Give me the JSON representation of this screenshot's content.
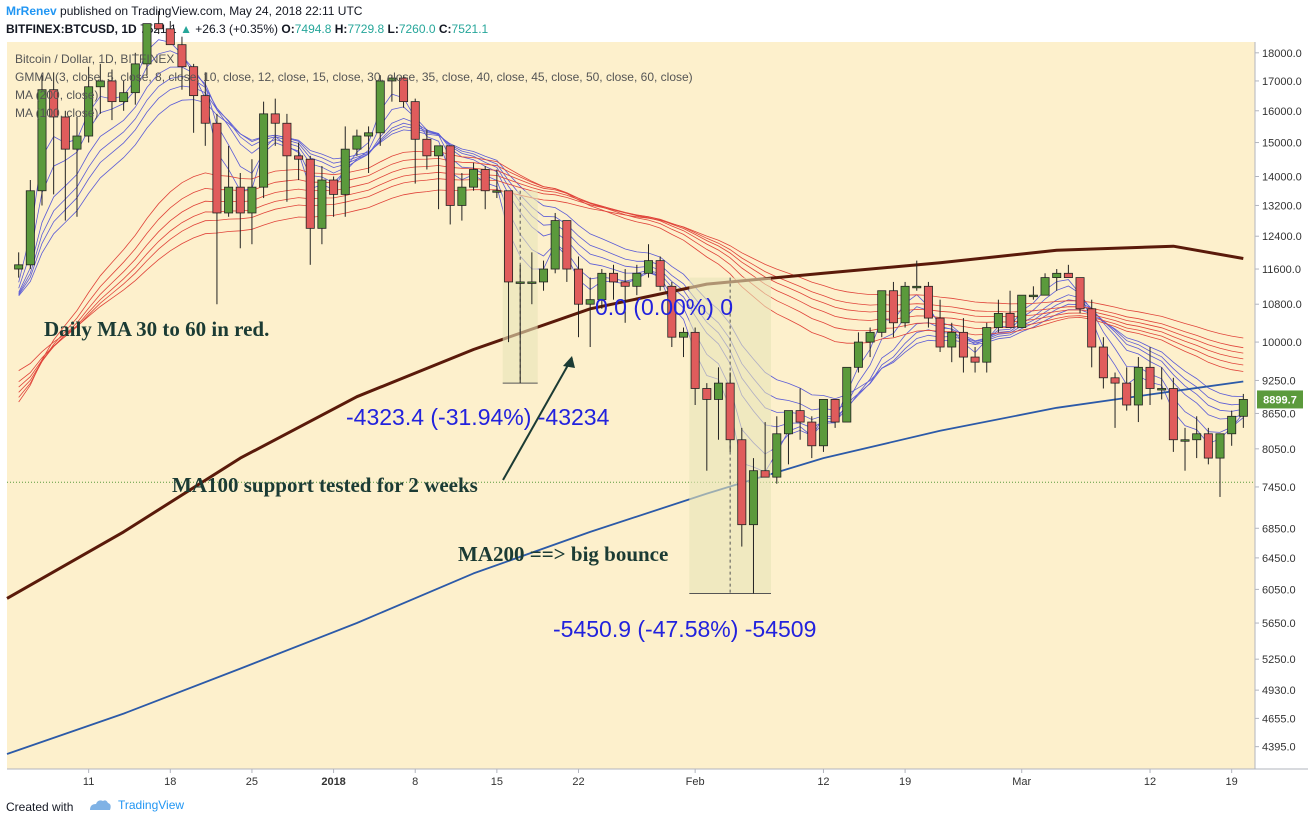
{
  "header": {
    "author": "MrRenev",
    "published_text": "published on TradingView.com, May 24, 2018 22:11 UTC",
    "symbol": "BITFINEX:BTCUSD, 1D",
    "last": "7521.1",
    "change_arrow": "▲",
    "change": "+26.3 (+0.35%)",
    "o_label": "O:",
    "o_value": "7494.8",
    "h_label": "H:",
    "h_value": "7729.8",
    "l_label": "L:",
    "l_value": "7260.0",
    "c_label": "C:",
    "c_value": "7521.1"
  },
  "legend": {
    "title": "Bitcoin / Dollar, 1D, BITFINEX",
    "gmma": "GMMA (3, close, 5, close, 8, close, 10, close, 12, close, 15, close, 30, close, 35, close, 40, close, 45, close, 50, close, 60, close)",
    "ma200": "MA (200, close)",
    "ma100": "MA (100, close)"
  },
  "annotations": {
    "daily_ma": "Daily MA 30 to 60 in red.",
    "ma100_support": "MA100 support tested for 2 weeks",
    "ma200_bounce": "MA200 ==> big bounce",
    "measure1": "-4323.4 (-31.94%) -43234",
    "measure2": "-5450.9 (-47.58%) -54509",
    "measure0": "0.0 (0.00%) 0"
  },
  "price_badge": "8899.7",
  "footer": {
    "created_with": "Created with",
    "brand": "TradingView"
  },
  "colors": {
    "background": "#fdf0cc",
    "bull": "#5b9a3c",
    "bear": "#e05c5c",
    "gmma_short": "#5b5bd6",
    "gmma_long": "#e0443a",
    "ma100": "#5a1a0a",
    "ma200": "#2c5aa8",
    "annotation_blue": "#2222dd",
    "annotation_green": "#1b3b34"
  },
  "chart_data": {
    "type": "candlestick",
    "title": "Bitcoin / Dollar, 1D, BITFINEX",
    "xlabel": "",
    "ylabel": "",
    "ylim": [
      4200,
      18400
    ],
    "y_scale": "log",
    "y_ticks": [
      "18000.0",
      "17000.0",
      "16000.0",
      "15000.0",
      "14000.0",
      "13200.0",
      "12400.0",
      "11600.0",
      "10800.0",
      "10000.0",
      "9250.0",
      "8650.0",
      "8050.0",
      "7450.0",
      "6850.0",
      "6450.0",
      "6050.0",
      "5650.0",
      "5250.0",
      "4930.0",
      "4655.0",
      "4395.0"
    ],
    "x_ticks": [
      "11",
      "18",
      "25",
      "2018",
      "8",
      "15",
      "22",
      "Feb",
      "12",
      "19",
      "Mar",
      "12",
      "19"
    ],
    "x_range": [
      "2017-12-04",
      "2018-03-21"
    ],
    "current_price_line": 7521.1,
    "candles": [
      {
        "date": "2017-12-05",
        "o": 11600,
        "h": 12000,
        "l": 11400,
        "c": 11700
      },
      {
        "date": "2017-12-06",
        "o": 11700,
        "h": 13900,
        "l": 11600,
        "c": 13600
      },
      {
        "date": "2017-12-07",
        "o": 13600,
        "h": 17200,
        "l": 13200,
        "c": 16700
      },
      {
        "date": "2017-12-08",
        "o": 16700,
        "h": 17300,
        "l": 13500,
        "c": 15800
      },
      {
        "date": "2017-12-09",
        "o": 15800,
        "h": 16000,
        "l": 12800,
        "c": 14800
      },
      {
        "date": "2017-12-10",
        "o": 14800,
        "h": 15800,
        "l": 12900,
        "c": 15200
      },
      {
        "date": "2017-12-11",
        "o": 15200,
        "h": 17500,
        "l": 15000,
        "c": 16800
      },
      {
        "date": "2017-12-12",
        "o": 16800,
        "h": 17600,
        "l": 15900,
        "c": 17000
      },
      {
        "date": "2017-12-13",
        "o": 17000,
        "h": 17400,
        "l": 15700,
        "c": 16300
      },
      {
        "date": "2017-12-14",
        "o": 16300,
        "h": 17000,
        "l": 16000,
        "c": 16600
      },
      {
        "date": "2017-12-15",
        "o": 16600,
        "h": 18000,
        "l": 16200,
        "c": 17600
      },
      {
        "date": "2017-12-16",
        "o": 17600,
        "h": 19000,
        "l": 17200,
        "c": 19100
      },
      {
        "date": "2017-12-17",
        "o": 19100,
        "h": 19600,
        "l": 18700,
        "c": 18900
      },
      {
        "date": "2017-12-18",
        "o": 18900,
        "h": 19200,
        "l": 18300,
        "c": 18300
      },
      {
        "date": "2017-12-19",
        "o": 18300,
        "h": 18600,
        "l": 16700,
        "c": 17500
      },
      {
        "date": "2017-12-20",
        "o": 17500,
        "h": 17600,
        "l": 15300,
        "c": 16500
      },
      {
        "date": "2017-12-21",
        "o": 16500,
        "h": 17300,
        "l": 14900,
        "c": 15600
      },
      {
        "date": "2017-12-22",
        "o": 15600,
        "h": 15900,
        "l": 10800,
        "c": 13000
      },
      {
        "date": "2017-12-23",
        "o": 13000,
        "h": 14900,
        "l": 12900,
        "c": 13700
      },
      {
        "date": "2017-12-24",
        "o": 13700,
        "h": 14100,
        "l": 12100,
        "c": 13000
      },
      {
        "date": "2017-12-25",
        "o": 13000,
        "h": 14500,
        "l": 12200,
        "c": 13700
      },
      {
        "date": "2017-12-26",
        "o": 13700,
        "h": 16300,
        "l": 13400,
        "c": 15900
      },
      {
        "date": "2017-12-27",
        "o": 15900,
        "h": 16400,
        "l": 14900,
        "c": 15600
      },
      {
        "date": "2017-12-28",
        "o": 15600,
        "h": 15900,
        "l": 13300,
        "c": 14600
      },
      {
        "date": "2017-12-29",
        "o": 14600,
        "h": 15000,
        "l": 13900,
        "c": 14500
      },
      {
        "date": "2017-12-30",
        "o": 14500,
        "h": 14600,
        "l": 11700,
        "c": 12600
      },
      {
        "date": "2017-12-31",
        "o": 12600,
        "h": 14300,
        "l": 12200,
        "c": 13900
      },
      {
        "date": "2018-01-01",
        "o": 13900,
        "h": 14000,
        "l": 12900,
        "c": 13500
      },
      {
        "date": "2018-01-02",
        "o": 13500,
        "h": 15500,
        "l": 12900,
        "c": 14800
      },
      {
        "date": "2018-01-03",
        "o": 14800,
        "h": 15400,
        "l": 14600,
        "c": 15200
      },
      {
        "date": "2018-01-04",
        "o": 15200,
        "h": 15500,
        "l": 14100,
        "c": 15300
      },
      {
        "date": "2018-01-05",
        "o": 15300,
        "h": 17200,
        "l": 14900,
        "c": 17000
      },
      {
        "date": "2018-01-06",
        "o": 17000,
        "h": 17200,
        "l": 16300,
        "c": 17100
      },
      {
        "date": "2018-01-07",
        "o": 17100,
        "h": 17200,
        "l": 16100,
        "c": 16300
      },
      {
        "date": "2018-01-08",
        "o": 16300,
        "h": 16400,
        "l": 13800,
        "c": 15100
      },
      {
        "date": "2018-01-09",
        "o": 15100,
        "h": 15400,
        "l": 14200,
        "c": 14600
      },
      {
        "date": "2018-01-10",
        "o": 14600,
        "h": 14900,
        "l": 13100,
        "c": 14900
      },
      {
        "date": "2018-01-11",
        "o": 14900,
        "h": 14900,
        "l": 12700,
        "c": 13200
      },
      {
        "date": "2018-01-12",
        "o": 13200,
        "h": 14100,
        "l": 12800,
        "c": 13700
      },
      {
        "date": "2018-01-13",
        "o": 13700,
        "h": 14400,
        "l": 13600,
        "c": 14200
      },
      {
        "date": "2018-01-14",
        "o": 14200,
        "h": 14300,
        "l": 13100,
        "c": 13600
      },
      {
        "date": "2018-01-15",
        "o": 13600,
        "h": 14200,
        "l": 13400,
        "c": 13600
      },
      {
        "date": "2018-01-16",
        "o": 13600,
        "h": 13600,
        "l": 10000,
        "c": 11300
      },
      {
        "date": "2018-01-17",
        "o": 11300,
        "h": 11700,
        "l": 9200,
        "c": 11300
      },
      {
        "date": "2018-01-18",
        "o": 11300,
        "h": 12000,
        "l": 10800,
        "c": 11300
      },
      {
        "date": "2018-01-19",
        "o": 11300,
        "h": 11800,
        "l": 11100,
        "c": 11600
      },
      {
        "date": "2018-01-20",
        "o": 11600,
        "h": 13000,
        "l": 11500,
        "c": 12800
      },
      {
        "date": "2018-01-21",
        "o": 12800,
        "h": 12800,
        "l": 11300,
        "c": 11600
      },
      {
        "date": "2018-01-22",
        "o": 11600,
        "h": 11900,
        "l": 10100,
        "c": 10800
      },
      {
        "date": "2018-01-23",
        "o": 10800,
        "h": 11400,
        "l": 9900,
        "c": 10900
      },
      {
        "date": "2018-01-24",
        "o": 10900,
        "h": 11600,
        "l": 10700,
        "c": 11500
      },
      {
        "date": "2018-01-25",
        "o": 11500,
        "h": 11700,
        "l": 10900,
        "c": 11300
      },
      {
        "date": "2018-01-26",
        "o": 11300,
        "h": 11600,
        "l": 10400,
        "c": 11200
      },
      {
        "date": "2018-01-27",
        "o": 11200,
        "h": 11700,
        "l": 11000,
        "c": 11500
      },
      {
        "date": "2018-01-28",
        "o": 11500,
        "h": 12200,
        "l": 11400,
        "c": 11800
      },
      {
        "date": "2018-01-29",
        "o": 11800,
        "h": 11900,
        "l": 11100,
        "c": 11200
      },
      {
        "date": "2018-01-30",
        "o": 11200,
        "h": 11300,
        "l": 9900,
        "c": 10100
      },
      {
        "date": "2018-01-31",
        "o": 10100,
        "h": 10300,
        "l": 9700,
        "c": 10200
      },
      {
        "date": "2018-02-01",
        "o": 10200,
        "h": 10300,
        "l": 8800,
        "c": 9100
      },
      {
        "date": "2018-02-02",
        "o": 9100,
        "h": 9200,
        "l": 7700,
        "c": 8900
      },
      {
        "date": "2018-02-03",
        "o": 8900,
        "h": 9500,
        "l": 8200,
        "c": 9200
      },
      {
        "date": "2018-02-04",
        "o": 9200,
        "h": 9400,
        "l": 8000,
        "c": 8200
      },
      {
        "date": "2018-02-05",
        "o": 8200,
        "h": 8400,
        "l": 6600,
        "c": 6900
      },
      {
        "date": "2018-02-06",
        "o": 6900,
        "h": 7900,
        "l": 6000,
        "c": 7700
      },
      {
        "date": "2018-02-07",
        "o": 7700,
        "h": 8500,
        "l": 7600,
        "c": 7600
      },
      {
        "date": "2018-02-08",
        "o": 7600,
        "h": 8600,
        "l": 7500,
        "c": 8300
      },
      {
        "date": "2018-02-09",
        "o": 8300,
        "h": 8700,
        "l": 7800,
        "c": 8700
      },
      {
        "date": "2018-02-10",
        "o": 8700,
        "h": 9100,
        "l": 8200,
        "c": 8500
      },
      {
        "date": "2018-02-11",
        "o": 8500,
        "h": 8600,
        "l": 7900,
        "c": 8100
      },
      {
        "date": "2018-02-12",
        "o": 8100,
        "h": 8900,
        "l": 8000,
        "c": 8900
      },
      {
        "date": "2018-02-13",
        "o": 8900,
        "h": 8900,
        "l": 8400,
        "c": 8500
      },
      {
        "date": "2018-02-14",
        "o": 8500,
        "h": 9500,
        "l": 8500,
        "c": 9500
      },
      {
        "date": "2018-02-15",
        "o": 9500,
        "h": 10200,
        "l": 9400,
        "c": 10000
      },
      {
        "date": "2018-02-16",
        "o": 10000,
        "h": 10300,
        "l": 9700,
        "c": 10200
      },
      {
        "date": "2018-02-17",
        "o": 10200,
        "h": 11100,
        "l": 10100,
        "c": 11100
      },
      {
        "date": "2018-02-18",
        "o": 11100,
        "h": 11300,
        "l": 10100,
        "c": 10400
      },
      {
        "date": "2018-02-19",
        "o": 10400,
        "h": 11300,
        "l": 10300,
        "c": 11200
      },
      {
        "date": "2018-02-20",
        "o": 11200,
        "h": 11800,
        "l": 11100,
        "c": 11200
      },
      {
        "date": "2018-02-21",
        "o": 11200,
        "h": 11300,
        "l": 10300,
        "c": 10500
      },
      {
        "date": "2018-02-22",
        "o": 10500,
        "h": 10900,
        "l": 9800,
        "c": 9900
      },
      {
        "date": "2018-02-23",
        "o": 9900,
        "h": 10400,
        "l": 9600,
        "c": 10200
      },
      {
        "date": "2018-02-24",
        "o": 10200,
        "h": 10500,
        "l": 9400,
        "c": 9700
      },
      {
        "date": "2018-02-25",
        "o": 9700,
        "h": 9900,
        "l": 9400,
        "c": 9600
      },
      {
        "date": "2018-02-26",
        "o": 9600,
        "h": 10400,
        "l": 9400,
        "c": 10300
      },
      {
        "date": "2018-02-27",
        "o": 10300,
        "h": 10900,
        "l": 10200,
        "c": 10600
      },
      {
        "date": "2018-02-28",
        "o": 10600,
        "h": 11100,
        "l": 10300,
        "c": 10300
      },
      {
        "date": "2018-03-01",
        "o": 10300,
        "h": 11000,
        "l": 10300,
        "c": 11000
      },
      {
        "date": "2018-03-02",
        "o": 11000,
        "h": 11200,
        "l": 10900,
        "c": 11000
      },
      {
        "date": "2018-03-03",
        "o": 11000,
        "h": 11500,
        "l": 11000,
        "c": 11400
      },
      {
        "date": "2018-03-04",
        "o": 11400,
        "h": 11600,
        "l": 11100,
        "c": 11500
      },
      {
        "date": "2018-03-05",
        "o": 11500,
        "h": 11700,
        "l": 11400,
        "c": 11400
      },
      {
        "date": "2018-03-06",
        "o": 11400,
        "h": 11400,
        "l": 10600,
        "c": 10700
      },
      {
        "date": "2018-03-07",
        "o": 10700,
        "h": 10900,
        "l": 9500,
        "c": 9900
      },
      {
        "date": "2018-03-08",
        "o": 9900,
        "h": 10100,
        "l": 9100,
        "c": 9300
      },
      {
        "date": "2018-03-09",
        "o": 9300,
        "h": 9400,
        "l": 8400,
        "c": 9200
      },
      {
        "date": "2018-03-10",
        "o": 9200,
        "h": 9500,
        "l": 8700,
        "c": 8800
      },
      {
        "date": "2018-03-11",
        "o": 8800,
        "h": 9700,
        "l": 8500,
        "c": 9500
      },
      {
        "date": "2018-03-12",
        "o": 9500,
        "h": 9900,
        "l": 8800,
        "c": 9100
      },
      {
        "date": "2018-03-13",
        "o": 9100,
        "h": 9500,
        "l": 8900,
        "c": 9100
      },
      {
        "date": "2018-03-14",
        "o": 9100,
        "h": 9300,
        "l": 8000,
        "c": 8200
      },
      {
        "date": "2018-03-15",
        "o": 8200,
        "h": 8400,
        "l": 7700,
        "c": 8200
      },
      {
        "date": "2018-03-16",
        "o": 8200,
        "h": 8600,
        "l": 7900,
        "c": 8300
      },
      {
        "date": "2018-03-17",
        "o": 8300,
        "h": 8400,
        "l": 7800,
        "c": 7900
      },
      {
        "date": "2018-03-18",
        "o": 7900,
        "h": 8300,
        "l": 7300,
        "c": 8300
      },
      {
        "date": "2018-03-19",
        "o": 8300,
        "h": 8700,
        "l": 8100,
        "c": 8600
      },
      {
        "date": "2018-03-20",
        "o": 8600,
        "h": 9000,
        "l": 8400,
        "c": 8900
      }
    ],
    "ma100": [
      {
        "date": "2017-12-04",
        "v": 5940
      },
      {
        "date": "2017-12-14",
        "v": 6800
      },
      {
        "date": "2017-12-24",
        "v": 7900
      },
      {
        "date": "2018-01-03",
        "v": 8950
      },
      {
        "date": "2018-01-13",
        "v": 9850
      },
      {
        "date": "2018-01-23",
        "v": 10700
      },
      {
        "date": "2018-02-02",
        "v": 11250
      },
      {
        "date": "2018-02-12",
        "v": 11500
      },
      {
        "date": "2018-02-22",
        "v": 11750
      },
      {
        "date": "2018-03-04",
        "v": 12050
      },
      {
        "date": "2018-03-14",
        "v": 12150
      },
      {
        "date": "2018-03-20",
        "v": 11850
      }
    ],
    "ma200": [
      {
        "date": "2017-12-04",
        "v": 4330
      },
      {
        "date": "2017-12-14",
        "v": 4700
      },
      {
        "date": "2017-12-24",
        "v": 5150
      },
      {
        "date": "2018-01-03",
        "v": 5650
      },
      {
        "date": "2018-01-13",
        "v": 6250
      },
      {
        "date": "2018-01-23",
        "v": 6800
      },
      {
        "date": "2018-02-02",
        "v": 7350
      },
      {
        "date": "2018-02-12",
        "v": 7900
      },
      {
        "date": "2018-02-22",
        "v": 8350
      },
      {
        "date": "2018-03-04",
        "v": 8750
      },
      {
        "date": "2018-03-14",
        "v": 9050
      },
      {
        "date": "2018-03-20",
        "v": 9230
      }
    ],
    "measures": [
      {
        "from_date": "2018-01-16",
        "to_date": "2018-01-17",
        "high": 13600,
        "low": 9200,
        "label": "-4323.4 (-31.94%) -43234"
      },
      {
        "from_date": "2018-02-01",
        "to_date": "2018-02-06",
        "high": 11400,
        "low": 6000,
        "label": "-5450.9 (-47.58%) -54509"
      }
    ]
  }
}
